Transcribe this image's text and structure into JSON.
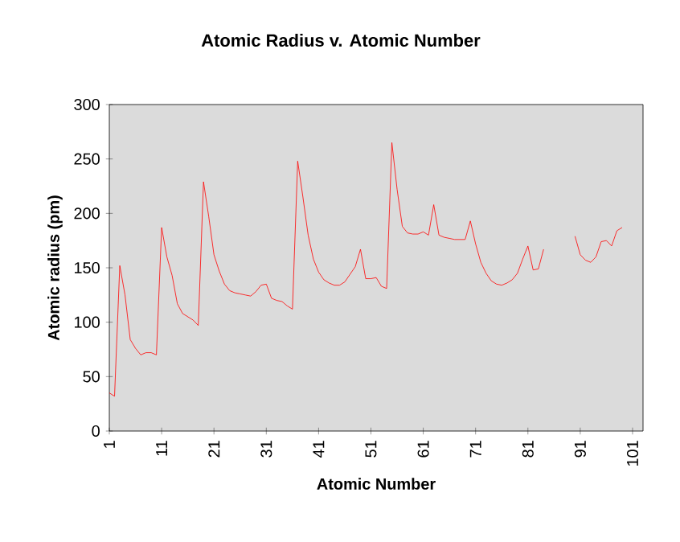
{
  "chart_data": {
    "type": "line",
    "title": "Atomic Radius v. Atomic Number",
    "xlabel": "Atomic Number",
    "ylabel": "Atomic radius (pm)",
    "x": [
      1,
      2,
      3,
      4,
      5,
      6,
      7,
      8,
      9,
      10,
      11,
      12,
      13,
      14,
      15,
      16,
      17,
      18,
      19,
      20,
      21,
      22,
      23,
      24,
      25,
      26,
      27,
      28,
      29,
      30,
      31,
      32,
      33,
      34,
      35,
      36,
      37,
      38,
      39,
      40,
      41,
      42,
      43,
      44,
      45,
      46,
      47,
      48,
      49,
      50,
      51,
      52,
      53,
      54,
      55,
      56,
      57,
      58,
      59,
      60,
      61,
      62,
      63,
      64,
      65,
      66,
      67,
      68,
      69,
      70,
      71,
      72,
      73,
      74,
      75,
      76,
      77,
      78,
      79,
      80,
      81,
      82,
      83,
      84,
      85,
      86,
      87,
      88,
      89,
      90,
      91,
      92,
      93,
      94,
      95,
      96,
      97,
      98,
      99
    ],
    "values": [
      35,
      32,
      152,
      125,
      84,
      76,
      70,
      72,
      72,
      70,
      187,
      160,
      143,
      117,
      108,
      105,
      102,
      97,
      229,
      197,
      162,
      147,
      135,
      129,
      127,
      126,
      125,
      124,
      128,
      134,
      135,
      122,
      120,
      119,
      115,
      112,
      248,
      215,
      180,
      158,
      146,
      139,
      136,
      134,
      134,
      137,
      144,
      151,
      167,
      140,
      140,
      141,
      133,
      131,
      265,
      222,
      188,
      182,
      181,
      181,
      183,
      180,
      208,
      180,
      178,
      177,
      176,
      176,
      176,
      193,
      172,
      155,
      145,
      138,
      135,
      134,
      136,
      139,
      145,
      158,
      170,
      148,
      149,
      167,
      null,
      null,
      null,
      null,
      null,
      179,
      162,
      157,
      155,
      160,
      174,
      175,
      170,
      184,
      187
    ],
    "color": "#ff0000",
    "line_style": "solid",
    "xlim": [
      1,
      103
    ],
    "xticks": [
      1,
      11,
      21,
      31,
      41,
      51,
      61,
      71,
      81,
      91,
      101
    ],
    "ylim": [
      0,
      300
    ],
    "yticks": [
      0,
      50,
      100,
      150,
      200,
      250,
      300
    ]
  }
}
